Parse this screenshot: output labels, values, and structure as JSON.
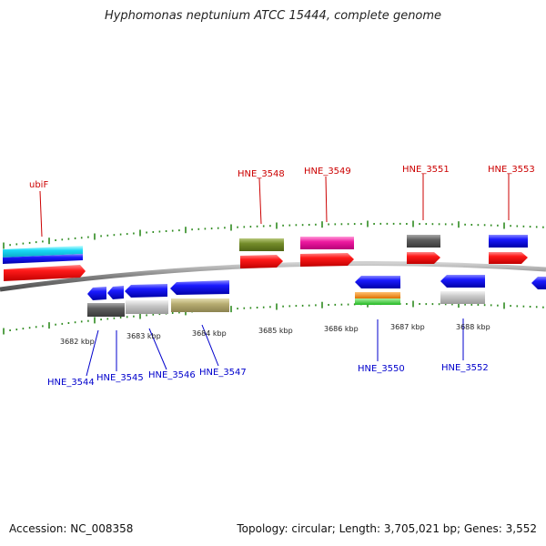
{
  "title": "Hyphomonas neptunium ATCC 15444, complete genome",
  "footer": {
    "accession": "Accession: NC_008358",
    "summary": "Topology: circular; Length: 3,705,021 bp; Genes: 3,552"
  },
  "colors": {
    "backbone": "#8a8a8a",
    "tick": "#2e8b1f",
    "top_label": "#cc0000",
    "bottom_label": "#0000cc",
    "cds_red": "#ee1111",
    "cds_blue": "#1515dd",
    "cds_cyan": "#11ccee"
  },
  "kbp_ticks": [
    "3682 kbp",
    "3683 kbp",
    "3684 kbp",
    "3685 kbp",
    "3686 kbp",
    "3687 kbp",
    "3688 kbp"
  ],
  "top_labels": [
    "ubiF",
    "HNE_3548",
    "HNE_3549",
    "HNE_3551",
    "HNE_3553"
  ],
  "bottom_labels": [
    "HNE_3544",
    "HNE_3545",
    "HNE_3546",
    "HNE_3547",
    "HNE_3550",
    "HNE_3552"
  ]
}
